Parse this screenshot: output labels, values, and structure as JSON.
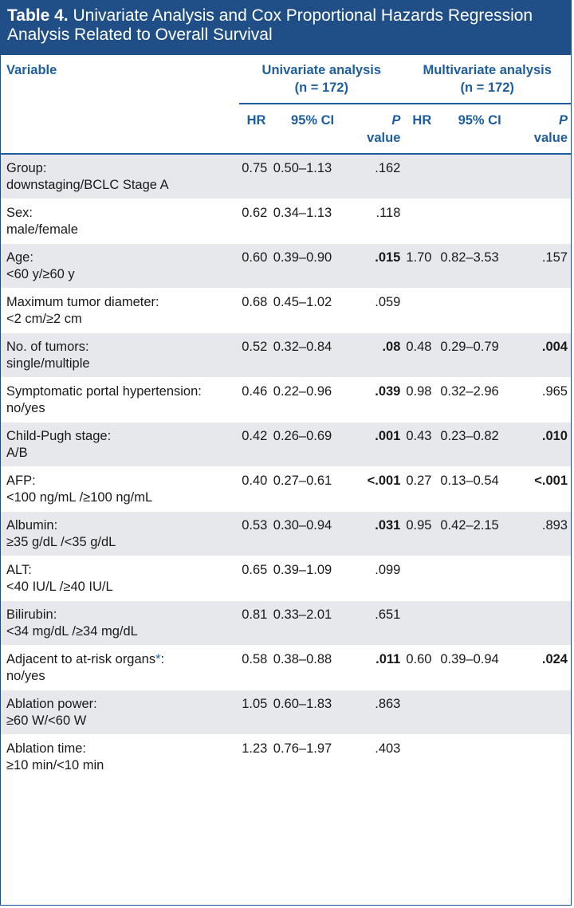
{
  "title": {
    "label": "Table 4.",
    "text": "Univariate Analysis and Cox Proportional Hazards Regression Analysis Related to Overall Survival"
  },
  "header": {
    "variable": "Variable",
    "univariate": "Univariate analysis",
    "univariate_n": "(n = 172)",
    "multivariate": "Multivariate analysis",
    "multivariate_n": "(n = 172)",
    "hr": "HR",
    "ci": "95% CI",
    "p": "P",
    "p_value": "value"
  },
  "rows": [
    {
      "name": "Group:",
      "detail": "downstaging/BCLC Stage A",
      "u_hr": "0.75",
      "u_ci": "0.50–1.13",
      "u_p": ".162",
      "u_bold": false,
      "m_hr": "",
      "m_ci": "",
      "m_p": "",
      "m_bold": false
    },
    {
      "name": "Sex:",
      "detail": "male/female",
      "u_hr": "0.62",
      "u_ci": "0.34–1.13",
      "u_p": ".118",
      "u_bold": false,
      "m_hr": "",
      "m_ci": "",
      "m_p": "",
      "m_bold": false
    },
    {
      "name": "Age:",
      "detail": "<60 y/≥60 y",
      "u_hr": "0.60",
      "u_ci": "0.39–0.90",
      "u_p": ".015",
      "u_bold": true,
      "m_hr": "1.70",
      "m_ci": "0.82–3.53",
      "m_p": ".157",
      "m_bold": false
    },
    {
      "name": "Maximum tumor diameter:",
      "detail": "<2 cm/≥2 cm",
      "u_hr": "0.68",
      "u_ci": "0.45–1.02",
      "u_p": ".059",
      "u_bold": false,
      "m_hr": "",
      "m_ci": "",
      "m_p": "",
      "m_bold": false
    },
    {
      "name": "No. of tumors:",
      "detail": "single/multiple",
      "u_hr": "0.52",
      "u_ci": "0.32–0.84",
      "u_p": ".08",
      "u_bold": true,
      "m_hr": "0.48",
      "m_ci": "0.29–0.79",
      "m_p": ".004",
      "m_bold": true
    },
    {
      "name": "Symptomatic portal hypertension:",
      "detail": "no/yes",
      "u_hr": "0.46",
      "u_ci": "0.22–0.96",
      "u_p": ".039",
      "u_bold": true,
      "m_hr": "0.98",
      "m_ci": "0.32–2.96",
      "m_p": ".965",
      "m_bold": false
    },
    {
      "name": "Child-Pugh stage:",
      "detail": "A/B",
      "u_hr": "0.42",
      "u_ci": "0.26–0.69",
      "u_p": ".001",
      "u_bold": true,
      "m_hr": "0.43",
      "m_ci": "0.23–0.82",
      "m_p": ".010",
      "m_bold": true
    },
    {
      "name": "AFP:",
      "detail": "<100 ng/mL /≥100 ng/mL",
      "u_hr": "0.40",
      "u_ci": "0.27–0.61",
      "u_p": "<.001",
      "u_bold": true,
      "m_hr": "0.27",
      "m_ci": "0.13–0.54",
      "m_p": "<.001",
      "m_bold": true
    },
    {
      "name": "Albumin:",
      "detail": "≥35 g/dL /<35 g/dL",
      "u_hr": "0.53",
      "u_ci": "0.30–0.94",
      "u_p": ".031",
      "u_bold": true,
      "m_hr": "0.95",
      "m_ci": "0.42–2.15",
      "m_p": ".893",
      "m_bold": false
    },
    {
      "name": "ALT:",
      "detail": "<40 IU/L /≥40 IU/L",
      "u_hr": "0.65",
      "u_ci": "0.39–1.09",
      "u_p": ".099",
      "u_bold": false,
      "m_hr": "",
      "m_ci": "",
      "m_p": "",
      "m_bold": false
    },
    {
      "name": "Bilirubin:",
      "detail": "<34 mg/dL /≥34 mg/dL",
      "u_hr": "0.81",
      "u_ci": "0.33–2.01",
      "u_p": ".651",
      "u_bold": false,
      "m_hr": "",
      "m_ci": "",
      "m_p": "",
      "m_bold": false
    },
    {
      "name": "Adjacent to at-risk organs",
      "star": "*",
      "name_suffix": ":",
      "detail": "no/yes",
      "u_hr": "0.58",
      "u_ci": "0.38–0.88",
      "u_p": ".011",
      "u_bold": true,
      "m_hr": "0.60",
      "m_ci": "0.39–0.94",
      "m_p": ".024",
      "m_bold": true
    },
    {
      "name": "Ablation power:",
      "detail": "≥60 W/<60 W",
      "u_hr": "1.05",
      "u_ci": "0.60–1.83",
      "u_p": ".863",
      "u_bold": false,
      "m_hr": "",
      "m_ci": "",
      "m_p": "",
      "m_bold": false
    },
    {
      "name": "Ablation time:",
      "detail": "≥10 min/<10 min",
      "u_hr": "1.23",
      "u_ci": "0.76–1.97",
      "u_p": ".403",
      "u_bold": false,
      "m_hr": "",
      "m_ci": "",
      "m_p": "",
      "m_bold": false
    }
  ],
  "colors": {
    "accent": "#1f4f86",
    "header_text": "#1f5e9e",
    "stripe": "#e6e8ec"
  }
}
